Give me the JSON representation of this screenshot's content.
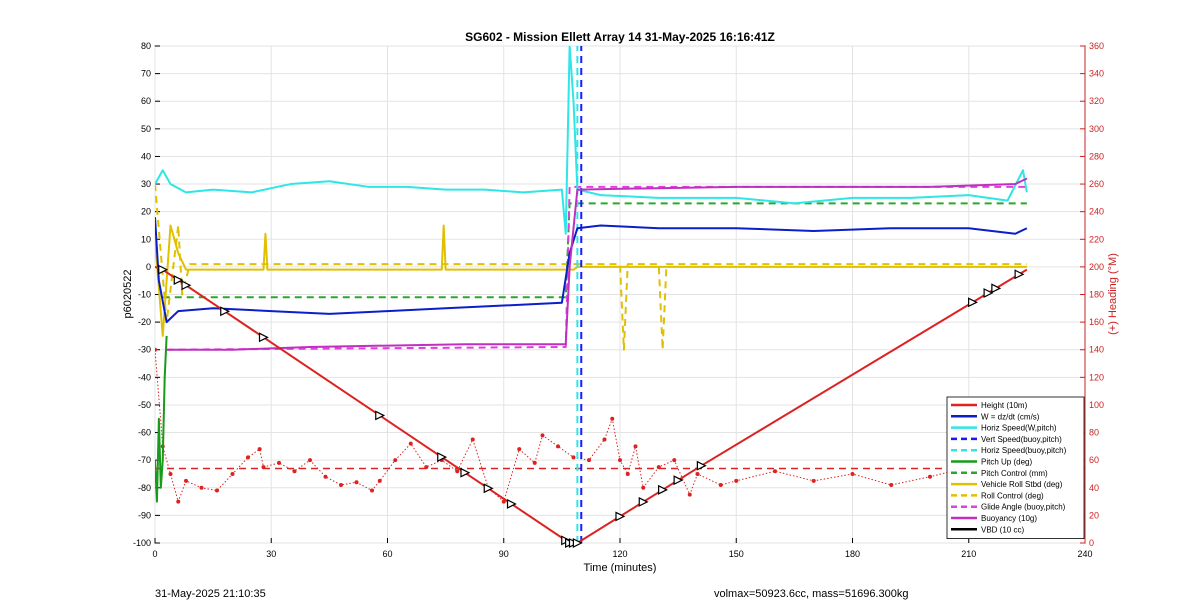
{
  "footer": {
    "timestamp": "31-May-2025 21:10:35",
    "stats": "volmax=50923.6cc, mass=51696.300kg"
  },
  "chart_data": {
    "type": "line",
    "title": "SG602 - Mission Ellett Array 14 31-May-2025 16:16:41Z",
    "xlabel": "Time (minutes)",
    "ylabel": "p6020522",
    "y2label": "(+) Heading (°M)",
    "xlim": [
      0,
      240
    ],
    "ylim": [
      -100,
      80
    ],
    "y2lim": [
      0,
      360
    ],
    "x_ticks": [
      0,
      30,
      60,
      90,
      120,
      150,
      180,
      210,
      240
    ],
    "y_ticks": [
      -100,
      -90,
      -80,
      -70,
      -60,
      -50,
      -40,
      -30,
      -20,
      -10,
      0,
      10,
      20,
      30,
      40,
      50,
      60,
      70,
      80
    ],
    "y2_ticks": [
      0,
      20,
      40,
      60,
      80,
      100,
      120,
      140,
      160,
      180,
      200,
      220,
      240,
      260,
      280,
      300,
      320,
      340,
      360
    ],
    "grid": true,
    "legend_position": "bottom-right",
    "series": [
      {
        "name": "Height (10m)",
        "color": "#dd2222",
        "style": "solid",
        "width": 2,
        "x": [
          0,
          2,
          107,
          109,
          141,
          225
        ],
        "y": [
          0,
          -1,
          -100,
          -100,
          -72,
          -1
        ]
      },
      {
        "name": "W = dz/dt (cm/s)",
        "color": "#0a1fc8",
        "style": "solid",
        "width": 2,
        "x": [
          0,
          1,
          3,
          6,
          15,
          30,
          45,
          60,
          75,
          90,
          105,
          107,
          109,
          115,
          130,
          150,
          170,
          190,
          210,
          222,
          225
        ],
        "y": [
          18,
          -5,
          -20,
          -16,
          -15,
          -16,
          -17,
          -16,
          -15,
          -14,
          -13,
          5,
          14,
          15,
          14,
          14,
          13,
          14,
          14,
          12,
          14
        ]
      },
      {
        "name": "Horiz Speed(W,pitch)",
        "color": "#2ee6e6",
        "style": "solid",
        "width": 2,
        "x": [
          0,
          2,
          4,
          8,
          15,
          25,
          35,
          45,
          55,
          65,
          75,
          85,
          95,
          105,
          106,
          107,
          108,
          109,
          115,
          130,
          150,
          165,
          180,
          195,
          210,
          220,
          224,
          225
        ],
        "y": [
          30,
          35,
          30,
          27,
          28,
          27,
          30,
          31,
          29,
          29,
          28,
          28,
          27,
          28,
          12,
          80,
          60,
          28,
          26,
          25,
          25,
          23,
          25,
          25,
          26,
          24,
          35,
          27
        ]
      },
      {
        "name": "Vert Speed(buoy,pitch)",
        "color": "#1a1aff",
        "style": "dash",
        "width": 2,
        "x": [
          110,
          110
        ],
        "y": [
          -100,
          80
        ]
      },
      {
        "name": "Horiz Speed(buoy,pitch)",
        "color": "#2ee6e6",
        "style": "dash",
        "width": 2,
        "x": [
          109,
          109
        ],
        "y": [
          -100,
          80
        ]
      },
      {
        "name": "Pitch Up (deg)",
        "color": "#1a9a1a",
        "style": "solid",
        "width": 2,
        "x": [
          0,
          0.5,
          1,
          1.5,
          2,
          2.5,
          3
        ],
        "y": [
          -70,
          -85,
          -55,
          -80,
          -70,
          -40,
          -25
        ]
      },
      {
        "name": "Pitch Control (mm)",
        "color": "#2aa82a",
        "style": "dash",
        "width": 2,
        "x": [
          2,
          106,
          107,
          225
        ],
        "y": [
          -11,
          -11,
          23,
          23
        ]
      },
      {
        "name": "Vehicle Roll Stbd (deg)",
        "color": "#e0c000",
        "style": "solid",
        "width": 2,
        "x": [
          0,
          2,
          4,
          6,
          8,
          28,
          28.5,
          29,
          74,
          74.5,
          75,
          108,
          109,
          225
        ],
        "y": [
          10,
          -25,
          15,
          5,
          -1,
          -1,
          12,
          -1,
          -1,
          15,
          -1,
          -1,
          0,
          0
        ]
      },
      {
        "name": "Roll Control (deg)",
        "color": "#e0c000",
        "style": "dash",
        "width": 2,
        "x": [
          0,
          3,
          6,
          7,
          9,
          12,
          106,
          109,
          120,
          121,
          122,
          130,
          131,
          132,
          225
        ],
        "y": [
          30,
          -20,
          15,
          -10,
          1,
          1,
          1,
          1,
          1,
          -30,
          1,
          1,
          -30,
          1,
          1
        ]
      },
      {
        "name": "Glide Angle (buoy,pitch)",
        "color": "#e040e0",
        "style": "dash",
        "width": 2,
        "x": [
          3,
          106,
          107,
          225
        ],
        "y": [
          -30,
          -29,
          29,
          29
        ]
      },
      {
        "name": "Buoyancy (10g)",
        "color": "#c030c0",
        "style": "solid",
        "width": 2,
        "x": [
          3,
          20,
          40,
          80,
          106,
          107,
          109,
          150,
          200,
          222,
          225
        ],
        "y": [
          -30,
          -30,
          -29,
          -28,
          -28,
          0,
          28,
          29,
          29,
          30,
          32
        ]
      },
      {
        "name": "VBD (10 cc)",
        "color": "#000000",
        "style": "solid",
        "width": 2,
        "x": [
          0,
          106,
          108,
          110,
          225
        ],
        "y": [
          -10,
          -10,
          0,
          10,
          10
        ]
      }
    ],
    "heading_series": {
      "axis": "right",
      "color": "#dd2222",
      "mean_line": 54,
      "x": [
        0,
        2,
        4,
        6,
        8,
        12,
        16,
        20,
        24,
        27,
        28,
        32,
        36,
        40,
        44,
        48,
        52,
        56,
        58,
        62,
        66,
        70,
        74,
        78,
        82,
        86,
        90,
        94,
        98,
        100,
        104,
        108,
        112,
        116,
        118,
        120,
        122,
        124,
        126,
        130,
        134,
        138,
        140,
        146,
        150,
        160,
        170,
        180,
        190,
        200,
        210,
        214,
        218,
        220,
        222,
        224,
        225
      ],
      "y": [
        140,
        70,
        50,
        30,
        45,
        40,
        38,
        50,
        62,
        68,
        55,
        58,
        52,
        60,
        48,
        42,
        44,
        38,
        45,
        60,
        72,
        55,
        60,
        52,
        75,
        40,
        30,
        68,
        58,
        78,
        70,
        62,
        60,
        75,
        90,
        60,
        50,
        70,
        40,
        55,
        60,
        35,
        50,
        42,
        45,
        52,
        45,
        50,
        42,
        48,
        55,
        65,
        70,
        45,
        75,
        60,
        55
      ]
    },
    "height_markers_x": [
      2,
      6,
      8,
      18,
      28,
      58,
      74,
      80,
      86,
      92,
      106,
      107,
      108,
      109,
      120,
      126,
      131,
      135,
      141,
      211,
      215,
      217,
      223
    ]
  }
}
